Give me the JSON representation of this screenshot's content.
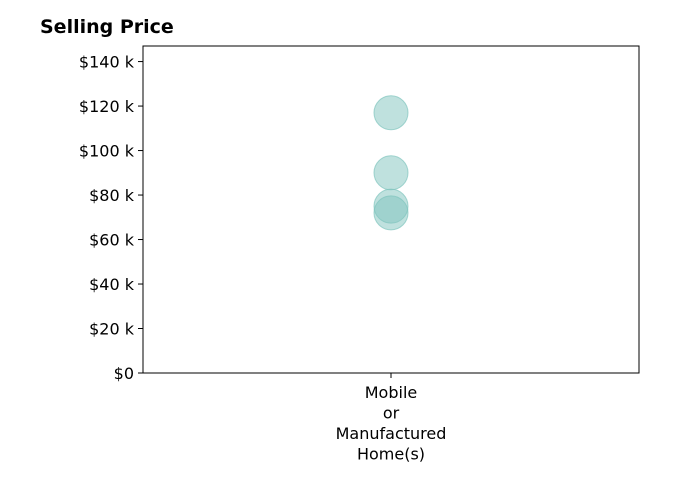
{
  "chart_data": {
    "type": "scatter",
    "title": "Selling Price",
    "xlabel": "",
    "ylabel": "",
    "categories": [
      [
        "Mobile",
        "or",
        "Manufactured",
        "Home(s)"
      ]
    ],
    "y_ticks": [
      "$0",
      "$20 k",
      "$40 k",
      "$60 k",
      "$80 k",
      "$100 k",
      "$120 k",
      "$140 k"
    ],
    "y_tick_values": [
      0,
      20000,
      40000,
      60000,
      80000,
      100000,
      120000,
      140000
    ],
    "ylim": [
      0,
      147000
    ],
    "grid": false,
    "series": [
      {
        "category_index": 0,
        "values": [
          117000,
          90000,
          75000,
          72000
        ]
      }
    ],
    "marker_color": "#7fc4bd",
    "marker_opacity": 0.5
  }
}
